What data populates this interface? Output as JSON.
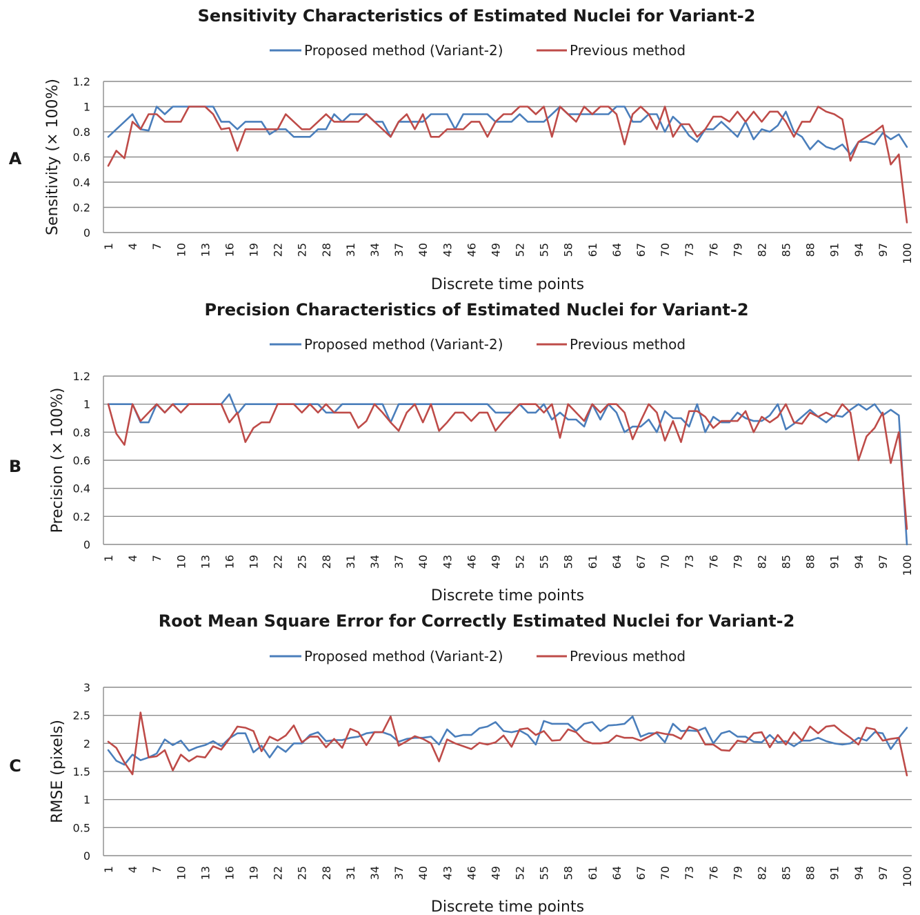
{
  "colors": {
    "proposed": "#4a7ebb",
    "previous": "#be4b48",
    "grid": "#8c8c8c"
  },
  "chart_data": [
    {
      "panel_label": "A",
      "type": "line",
      "title": "Sensitivity Characteristics of Estimated Nuclei for Variant-2",
      "xlabel": "Discrete time points",
      "ylabel": "Sensitivity (× 100%)",
      "ylim": [
        0,
        1.2
      ],
      "yticks": [
        "0",
        "0.2",
        "0.4",
        "0.6",
        "0.8",
        "1",
        "1.2"
      ],
      "xticks": [
        "1",
        "4",
        "7",
        "10",
        "13",
        "16",
        "19",
        "22",
        "25",
        "28",
        "31",
        "34",
        "37",
        "40",
        "43",
        "46",
        "49",
        "52",
        "55",
        "58",
        "61",
        "64",
        "67",
        "70",
        "73",
        "76",
        "79",
        "82",
        "85",
        "88",
        "91",
        "94",
        "97",
        "100"
      ],
      "legend_position": "top",
      "grid": true,
      "x_range": [
        1,
        100
      ],
      "series": [
        {
          "name": "Proposed method (Variant-2)",
          "color": "#4a7ebb",
          "values": [
            0.76,
            0.82,
            0.88,
            0.94,
            0.82,
            0.81,
            1.0,
            0.94,
            1.0,
            1.0,
            1.0,
            1.0,
            1.0,
            1.0,
            0.88,
            0.88,
            0.82,
            0.88,
            0.88,
            0.88,
            0.78,
            0.82,
            0.82,
            0.76,
            0.76,
            0.76,
            0.82,
            0.82,
            0.94,
            0.88,
            0.94,
            0.94,
            0.94,
            0.88,
            0.88,
            0.76,
            0.88,
            0.88,
            0.88,
            0.88,
            0.94,
            0.94,
            0.94,
            0.82,
            0.94,
            0.94,
            0.94,
            0.94,
            0.88,
            0.88,
            0.88,
            0.94,
            0.88,
            0.88,
            0.88,
            0.94,
            1.0,
            0.94,
            0.94,
            0.94,
            0.94,
            0.94,
            0.94,
            1.0,
            1.0,
            0.88,
            0.88,
            0.94,
            0.94,
            0.8,
            0.92,
            0.86,
            0.77,
            0.72,
            0.82,
            0.82,
            0.88,
            0.82,
            0.76,
            0.88,
            0.74,
            0.82,
            0.8,
            0.85,
            0.96,
            0.8,
            0.76,
            0.66,
            0.73,
            0.68,
            0.66,
            0.7,
            0.62,
            0.72,
            0.72,
            0.7,
            0.79,
            0.74,
            0.78,
            0.68
          ]
        },
        {
          "name": "Previous method",
          "color": "#be4b48",
          "values": [
            0.53,
            0.65,
            0.59,
            0.88,
            0.82,
            0.94,
            0.94,
            0.88,
            0.88,
            0.88,
            1.0,
            1.0,
            1.0,
            0.94,
            0.82,
            0.83,
            0.65,
            0.82,
            0.82,
            0.82,
            0.82,
            0.82,
            0.94,
            0.88,
            0.82,
            0.82,
            0.88,
            0.94,
            0.88,
            0.88,
            0.88,
            0.88,
            0.94,
            0.88,
            0.82,
            0.76,
            0.88,
            0.94,
            0.82,
            0.94,
            0.76,
            0.76,
            0.82,
            0.82,
            0.82,
            0.88,
            0.88,
            0.76,
            0.88,
            0.94,
            0.94,
            1.0,
            1.0,
            0.94,
            1.0,
            0.76,
            1.0,
            0.94,
            0.88,
            1.0,
            0.94,
            1.0,
            1.0,
            0.94,
            0.7,
            0.94,
            1.0,
            0.94,
            0.82,
            1.0,
            0.76,
            0.86,
            0.86,
            0.76,
            0.82,
            0.92,
            0.92,
            0.88,
            0.96,
            0.88,
            0.96,
            0.88,
            0.96,
            0.96,
            0.88,
            0.76,
            0.88,
            0.88,
            1.0,
            0.96,
            0.94,
            0.9,
            0.57,
            0.72,
            0.76,
            0.8,
            0.85,
            0.54,
            0.62,
            0.08
          ]
        }
      ]
    },
    {
      "panel_label": "B",
      "type": "line",
      "title": "Precision Characteristics of Estimated Nuclei for Variant-2",
      "xlabel": "Discrete time points",
      "ylabel": "Precision (× 100%)",
      "ylim": [
        0,
        1.2
      ],
      "yticks": [
        "0",
        "0.2",
        "0.4",
        "0.6",
        "0.8",
        "1",
        "1.2"
      ],
      "xticks": [
        "1",
        "4",
        "7",
        "10",
        "13",
        "16",
        "19",
        "22",
        "25",
        "28",
        "31",
        "34",
        "37",
        "40",
        "43",
        "46",
        "49",
        "52",
        "55",
        "58",
        "61",
        "64",
        "67",
        "70",
        "73",
        "76",
        "79",
        "82",
        "85",
        "88",
        "91",
        "94",
        "97",
        "100"
      ],
      "legend_position": "top",
      "grid": true,
      "x_range": [
        1,
        100
      ],
      "series": [
        {
          "name": "Proposed method (Variant-2)",
          "color": "#4a7ebb",
          "values": [
            1.0,
            1.0,
            1.0,
            1.0,
            0.87,
            0.87,
            1.0,
            0.94,
            1.0,
            1.0,
            1.0,
            1.0,
            1.0,
            1.0,
            1.0,
            1.07,
            0.93,
            1.0,
            1.0,
            1.0,
            1.0,
            1.0,
            1.0,
            1.0,
            1.0,
            1.0,
            1.0,
            0.94,
            0.94,
            1.0,
            1.0,
            1.0,
            1.0,
            1.0,
            1.0,
            0.87,
            1.0,
            1.0,
            1.0,
            1.0,
            1.0,
            1.0,
            1.0,
            1.0,
            1.0,
            1.0,
            1.0,
            1.0,
            0.94,
            0.94,
            0.94,
            1.0,
            0.94,
            0.94,
            1.0,
            0.89,
            0.94,
            0.89,
            0.89,
            0.84,
            1.0,
            0.89,
            1.0,
            0.94,
            0.8,
            0.84,
            0.84,
            0.89,
            0.8,
            0.95,
            0.9,
            0.9,
            0.84,
            1.0,
            0.8,
            0.91,
            0.87,
            0.87,
            0.94,
            0.9,
            0.88,
            0.88,
            0.92,
            1.0,
            0.82,
            0.86,
            0.91,
            0.96,
            0.91,
            0.87,
            0.92,
            0.91,
            0.96,
            1.0,
            0.96,
            1.0,
            0.92,
            0.96,
            0.92,
            0.0
          ]
        },
        {
          "name": "Previous method",
          "color": "#be4b48",
          "values": [
            1.0,
            0.79,
            0.71,
            1.0,
            0.88,
            0.94,
            1.0,
            0.94,
            1.0,
            0.94,
            1.0,
            1.0,
            1.0,
            1.0,
            1.0,
            0.87,
            0.94,
            0.73,
            0.83,
            0.87,
            0.87,
            1.0,
            1.0,
            1.0,
            0.94,
            1.0,
            0.94,
            1.0,
            0.94,
            0.94,
            0.94,
            0.83,
            0.88,
            1.0,
            0.94,
            0.87,
            0.81,
            0.94,
            1.0,
            0.87,
            1.0,
            0.81,
            0.87,
            0.94,
            0.94,
            0.88,
            0.94,
            0.94,
            0.81,
            0.88,
            0.94,
            1.0,
            1.0,
            1.0,
            0.94,
            1.0,
            0.76,
            1.0,
            0.94,
            0.88,
            1.0,
            0.94,
            1.0,
            1.0,
            0.94,
            0.75,
            0.88,
            1.0,
            0.94,
            0.74,
            0.88,
            0.73,
            0.95,
            0.95,
            0.91,
            0.83,
            0.88,
            0.88,
            0.88,
            0.95,
            0.8,
            0.91,
            0.87,
            0.91,
            1.0,
            0.87,
            0.86,
            0.94,
            0.91,
            0.94,
            0.91,
            1.0,
            0.94,
            0.6,
            0.77,
            0.83,
            0.94,
            0.58,
            0.8,
            0.11
          ]
        }
      ]
    },
    {
      "panel_label": "C",
      "type": "line",
      "title": "Root Mean Square Error for Correctly Estimated Nuclei for Variant-2",
      "xlabel": "Discrete time points",
      "ylabel": "RMSE (pixels)",
      "ylim": [
        0,
        3
      ],
      "yticks": [
        "0",
        "0.5",
        "1",
        "1.5",
        "2",
        "2.5",
        "3"
      ],
      "xticks": [
        "1",
        "4",
        "7",
        "10",
        "13",
        "16",
        "19",
        "22",
        "25",
        "28",
        "31",
        "34",
        "37",
        "40",
        "43",
        "46",
        "49",
        "52",
        "55",
        "58",
        "61",
        "64",
        "67",
        "70",
        "73",
        "76",
        "79",
        "82",
        "85",
        "88",
        "91",
        "94",
        "97",
        "100"
      ],
      "legend_position": "top",
      "grid": true,
      "x_range": [
        1,
        100
      ],
      "series": [
        {
          "name": "Proposed method (Variant-2)",
          "color": "#4a7ebb",
          "values": [
            1.88,
            1.69,
            1.62,
            1.8,
            1.7,
            1.75,
            1.82,
            2.07,
            1.97,
            2.05,
            1.87,
            1.93,
            1.97,
            2.04,
            1.95,
            2.09,
            2.18,
            2.18,
            1.84,
            1.96,
            1.75,
            1.95,
            1.85,
            2.0,
            2.0,
            2.15,
            2.2,
            2.04,
            2.06,
            2.06,
            2.1,
            2.12,
            2.18,
            2.2,
            2.2,
            2.15,
            2.03,
            2.08,
            2.1,
            2.1,
            2.12,
            1.98,
            2.25,
            2.12,
            2.15,
            2.15,
            2.27,
            2.3,
            2.38,
            2.22,
            2.2,
            2.23,
            2.15,
            1.98,
            2.4,
            2.35,
            2.35,
            2.35,
            2.22,
            2.35,
            2.38,
            2.22,
            2.32,
            2.33,
            2.35,
            2.48,
            2.12,
            2.18,
            2.18,
            2.02,
            2.35,
            2.22,
            2.23,
            2.22,
            2.28,
            2.0,
            2.18,
            2.22,
            2.12,
            2.12,
            2.03,
            2.02,
            2.15,
            2.02,
            2.04,
            1.95,
            2.05,
            2.05,
            2.1,
            2.04,
            2.0,
            1.98,
            2.0,
            2.1,
            2.05,
            2.2,
            2.18,
            1.9,
            2.1,
            2.28
          ]
        },
        {
          "name": "Previous method",
          "color": "#be4b48",
          "values": [
            2.03,
            1.92,
            1.66,
            1.45,
            2.55,
            1.75,
            1.77,
            1.88,
            1.52,
            1.8,
            1.68,
            1.77,
            1.75,
            1.95,
            1.89,
            2.08,
            2.3,
            2.28,
            2.22,
            1.86,
            2.12,
            2.05,
            2.14,
            2.32,
            2.02,
            2.12,
            2.12,
            1.93,
            2.08,
            1.92,
            2.26,
            2.2,
            1.97,
            2.2,
            2.2,
            2.48,
            1.96,
            2.04,
            2.13,
            2.08,
            2.0,
            1.68,
            2.07,
            2.0,
            1.95,
            1.9,
            2.01,
            1.98,
            2.02,
            2.14,
            1.94,
            2.25,
            2.27,
            2.15,
            2.22,
            2.05,
            2.06,
            2.25,
            2.2,
            2.05,
            2.0,
            2.0,
            2.02,
            2.14,
            2.1,
            2.1,
            2.05,
            2.12,
            2.2,
            2.17,
            2.15,
            2.08,
            2.3,
            2.24,
            1.98,
            1.98,
            1.88,
            1.87,
            2.05,
            2.02,
            2.18,
            2.2,
            1.93,
            2.15,
            1.98,
            2.2,
            2.05,
            2.3,
            2.18,
            2.3,
            2.32,
            2.2,
            2.1,
            1.98,
            2.28,
            2.25,
            2.05,
            2.08,
            2.1,
            1.43
          ]
        }
      ]
    }
  ]
}
